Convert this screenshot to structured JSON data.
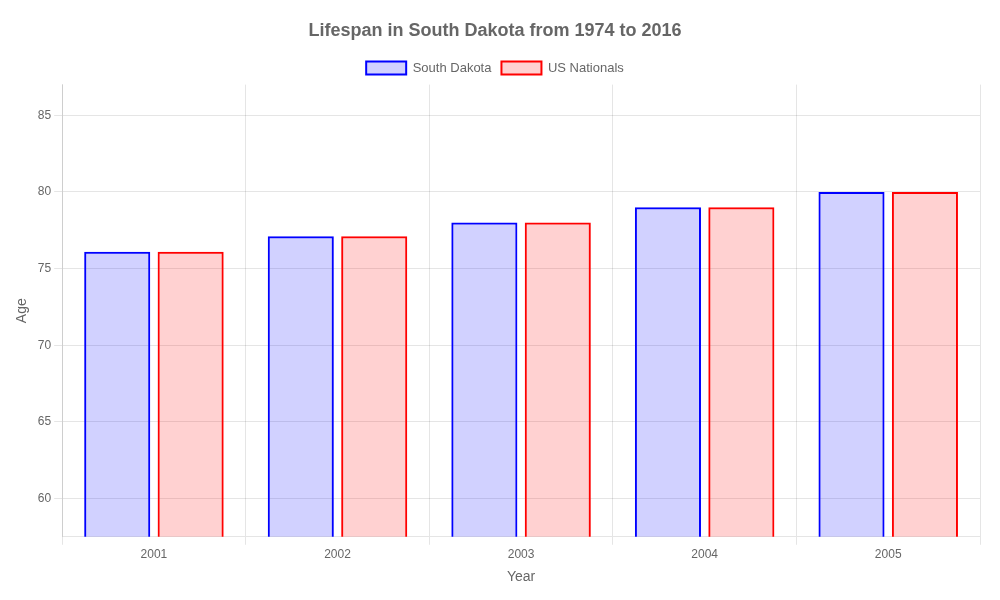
{
  "chart_data": {
    "type": "bar",
    "title": "Lifespan in South Dakota from 1974 to 2016",
    "xlabel": "Year",
    "ylabel": "Age",
    "categories": [
      "2001",
      "2002",
      "2003",
      "2004",
      "2005"
    ],
    "series": [
      {
        "name": "South Dakota",
        "color": "#0000ff",
        "values": [
          76.1,
          77.1,
          78.0,
          79.0,
          80.0
        ]
      },
      {
        "name": "US Nationals",
        "color": "#ff0000",
        "values": [
          76.1,
          77.1,
          78.0,
          79.0,
          80.0
        ]
      }
    ],
    "ylim": [
      57.5,
      87
    ],
    "yticks": [
      60,
      65,
      70,
      75,
      80,
      85
    ],
    "grid": true,
    "legend": "top"
  }
}
